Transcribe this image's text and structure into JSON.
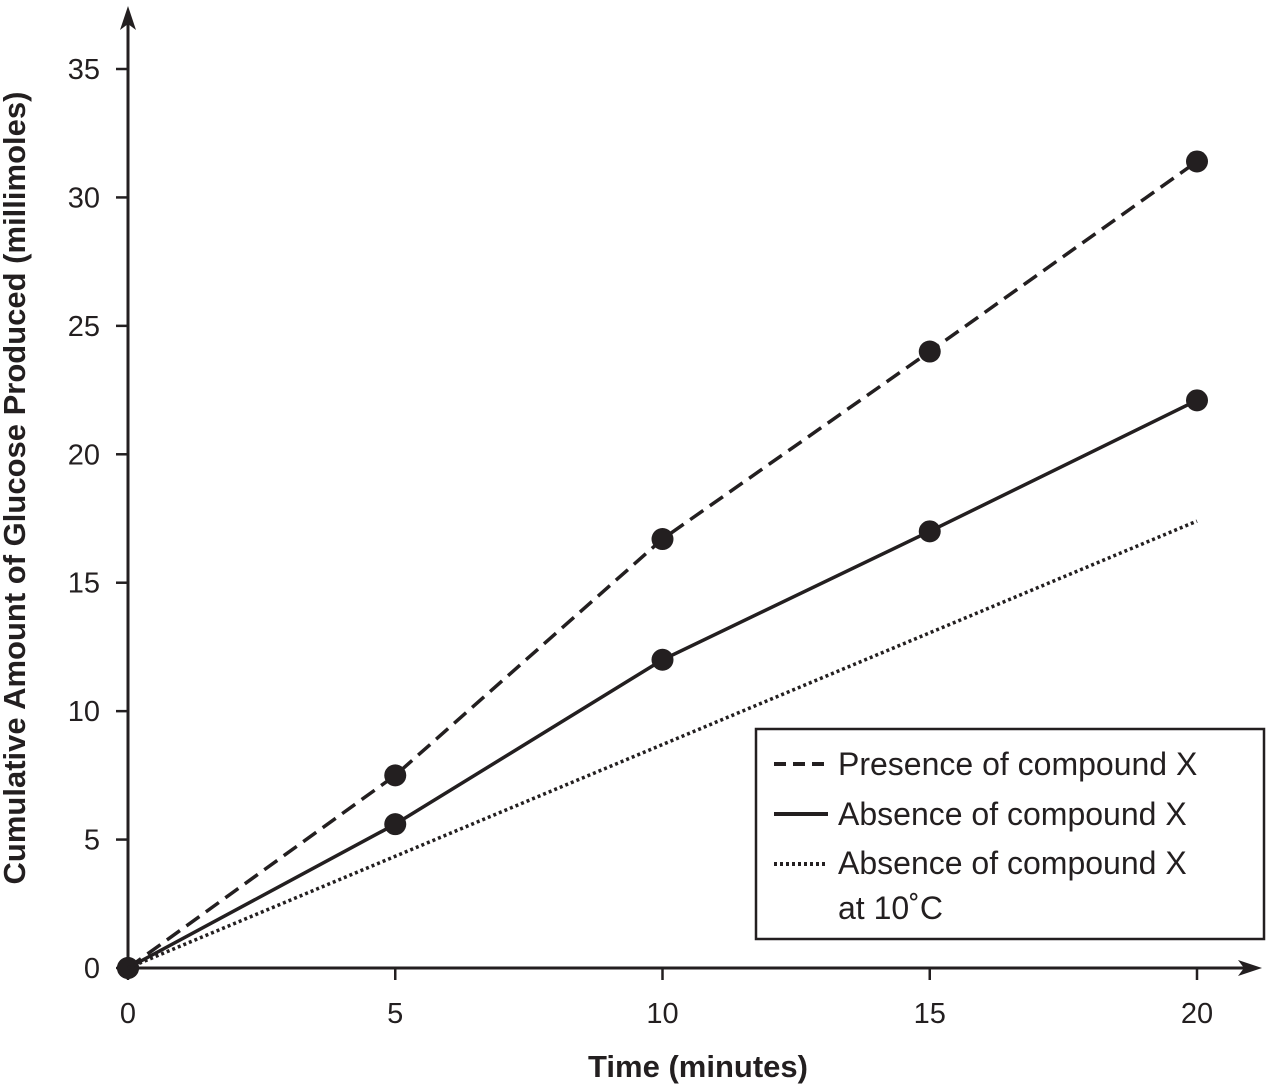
{
  "chart_data": {
    "type": "line",
    "title": "",
    "xlabel": "Time (minutes)",
    "ylabel": "Cumulative Amount of Glucose Produced (millimoles)",
    "xlim": [
      0,
      20
    ],
    "ylim": [
      0,
      35
    ],
    "xticks": [
      "0",
      "5",
      "10",
      "15",
      "20"
    ],
    "yticks": [
      "0",
      "5",
      "10",
      "15",
      "20",
      "25",
      "30",
      "35"
    ],
    "grid": false,
    "legend_position": "bottom-right",
    "series": [
      {
        "name": "Presence of compound X",
        "style": "dashed",
        "markers": true,
        "x": [
          0,
          5,
          10,
          15,
          20
        ],
        "y": [
          0,
          7.5,
          16.7,
          24,
          31.4
        ]
      },
      {
        "name": "Absence of compound X",
        "style": "solid",
        "markers": true,
        "x": [
          0,
          5,
          10,
          15,
          20
        ],
        "y": [
          0,
          5.6,
          12,
          17,
          22.1
        ]
      },
      {
        "name": "Absence of compound X at 10˚C",
        "name_lines": [
          "Absence of compound X",
          "at 10˚C"
        ],
        "style": "dotted",
        "markers": false,
        "x": [
          0,
          20
        ],
        "y": [
          0,
          17.4
        ]
      }
    ],
    "colors": {
      "ink": "#231f20",
      "background": "#ffffff"
    }
  }
}
